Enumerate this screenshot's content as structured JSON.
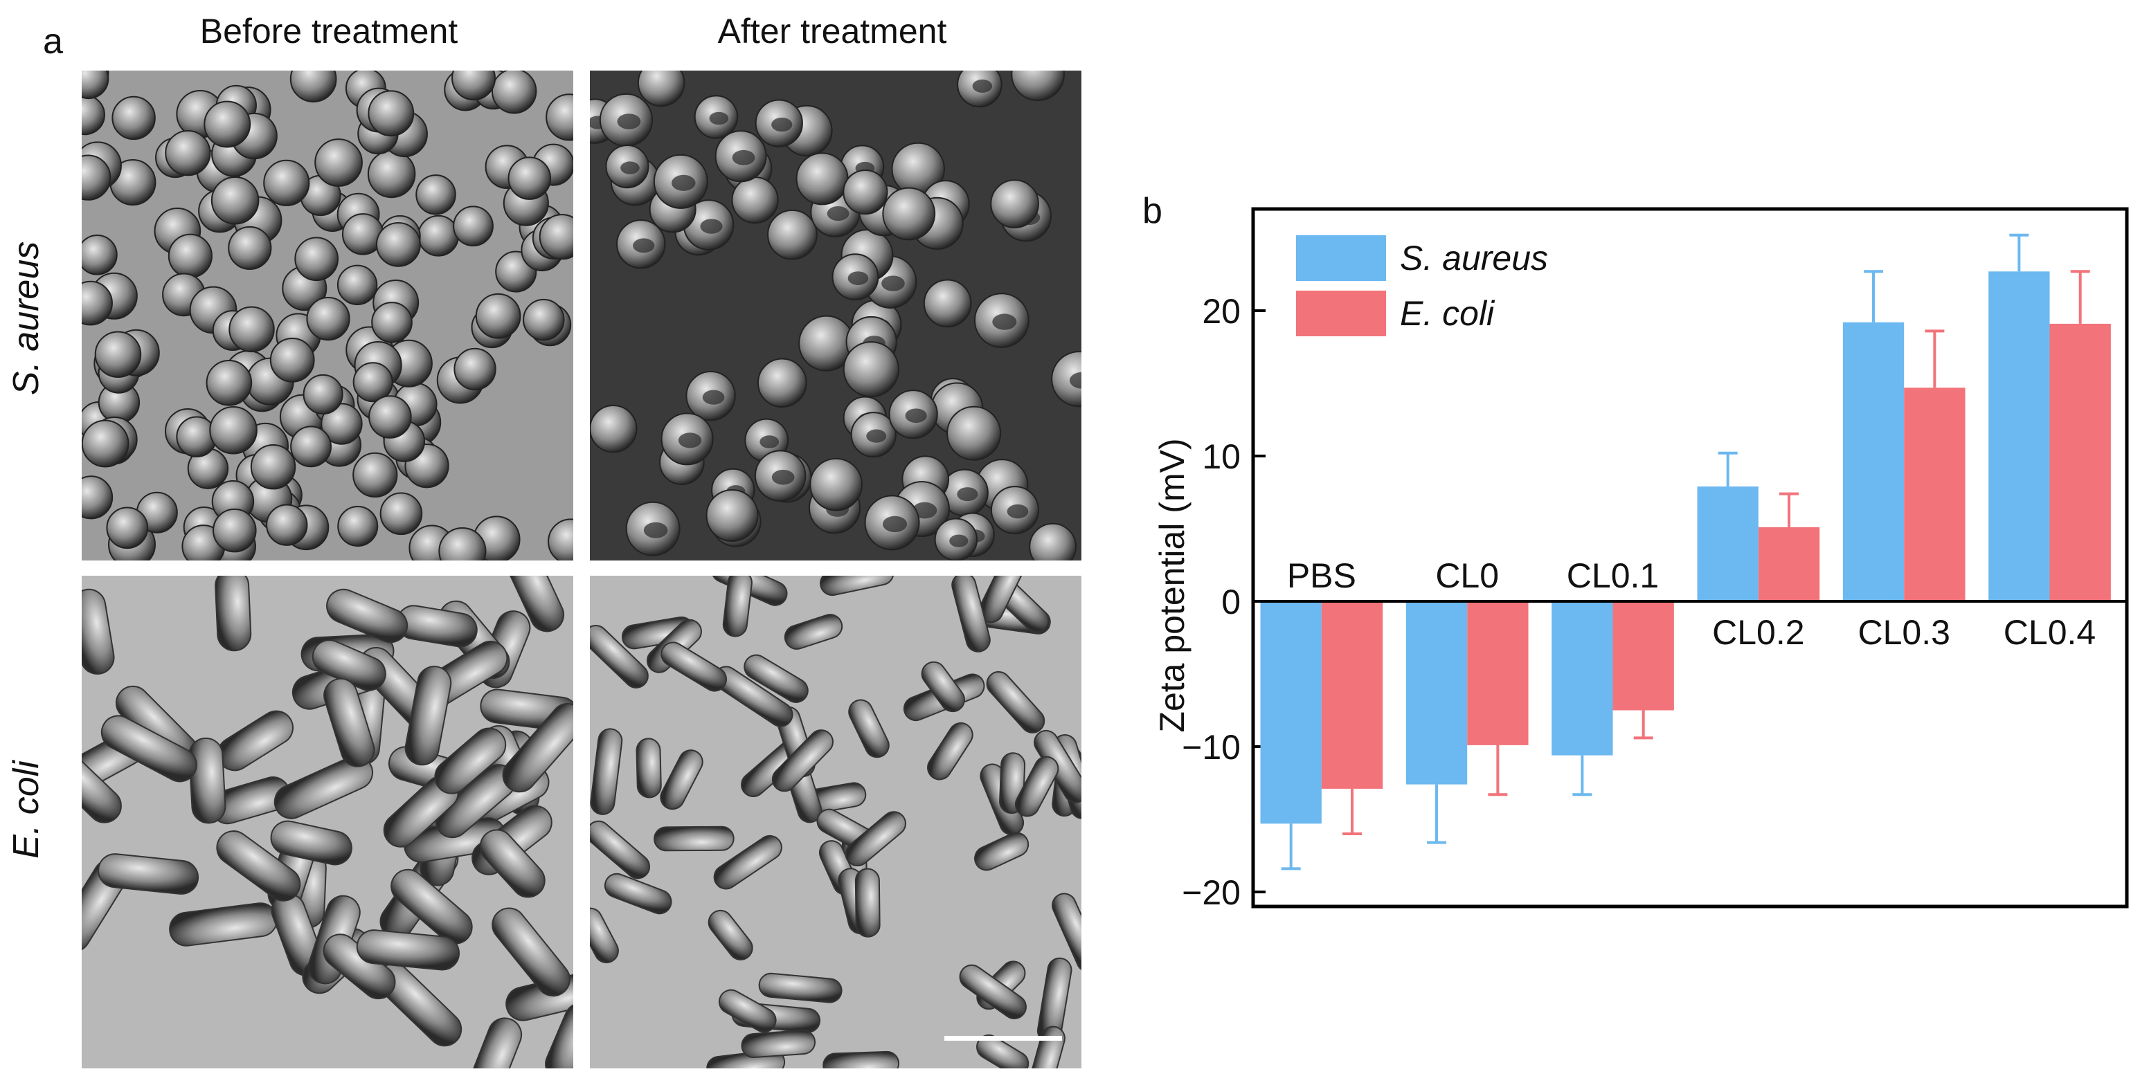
{
  "figure": {
    "panel_a_letter": "a",
    "panel_b_letter": "b",
    "columns": [
      "Before treatment",
      "After treatment"
    ],
    "rows": [
      "S. aureus",
      "E. coli"
    ],
    "scale_bar_label": ""
  },
  "chart_data": {
    "type": "bar",
    "title": "",
    "xlabel": "",
    "ylabel": "Zeta potential (mV)",
    "categories": [
      "PBS",
      "CL0",
      "CL0.1",
      "CL0.2",
      "CL0.3",
      "CL0.4"
    ],
    "series": [
      {
        "name": "S. aureus",
        "color": "#6cb8f0",
        "values": [
          -15.3,
          -12.6,
          -10.6,
          7.9,
          19.2,
          22.7
        ],
        "errors": [
          3.1,
          4.0,
          2.7,
          2.3,
          3.5,
          2.5
        ]
      },
      {
        "name": "E. coli",
        "color": "#f2737a",
        "values": [
          -12.9,
          -9.9,
          -7.5,
          5.1,
          14.7,
          19.1
        ],
        "errors": [
          3.1,
          3.4,
          1.9,
          2.3,
          3.9,
          3.6
        ]
      }
    ],
    "ylim": [
      -21,
      27
    ],
    "yticks": [
      -20,
      -10,
      0,
      10,
      20
    ],
    "ytick_labels": [
      "−20",
      "−10",
      "0",
      "10",
      "20"
    ],
    "grid": false,
    "legend_position": "top-left",
    "category_label_position": "above-zero-for-negative, below-zero-for-positive"
  }
}
